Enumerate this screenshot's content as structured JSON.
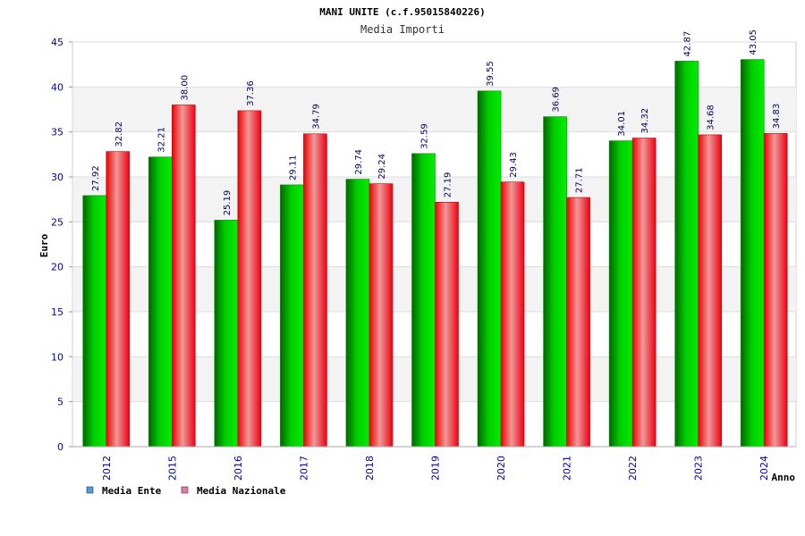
{
  "chart_data": {
    "type": "bar",
    "title": "MANI UNITE (c.f.95015840226)",
    "subtitle": "Media Importi",
    "xlabel": "Anno",
    "ylabel": "Euro",
    "ylim": [
      0,
      45
    ],
    "yticks": [
      "0",
      "5",
      "10",
      "15",
      "20",
      "25",
      "30",
      "35",
      "40",
      "45"
    ],
    "grid": true,
    "legend_position": "bottom-left",
    "categories": [
      "2012",
      "2015",
      "2016",
      "2017",
      "2018",
      "2019",
      "2020",
      "2021",
      "2022",
      "2023",
      "2024"
    ],
    "series": [
      {
        "name": "Media Ente",
        "color": "#00bb00",
        "values": [
          27.92,
          32.21,
          25.19,
          29.11,
          29.74,
          32.59,
          39.55,
          36.69,
          34.01,
          42.87,
          43.05
        ],
        "labels": [
          "27.92",
          "32.21",
          "25.19",
          "29.11",
          "29.74",
          "32.59",
          "39.55",
          "36.69",
          "34.01",
          "42.87",
          "43.05"
        ]
      },
      {
        "name": "Media Nazionale",
        "color": "#ee1122",
        "values": [
          32.82,
          38.0,
          37.36,
          34.79,
          29.24,
          27.19,
          29.43,
          27.71,
          34.32,
          34.68,
          34.83
        ],
        "labels": [
          "32.82",
          "38.00",
          "37.36",
          "34.79",
          "29.24",
          "27.19",
          "29.43",
          "27.71",
          "34.32",
          "34.68",
          "34.83"
        ]
      }
    ],
    "legend_colors": [
      "#5599ee",
      "#ee77aa"
    ]
  }
}
